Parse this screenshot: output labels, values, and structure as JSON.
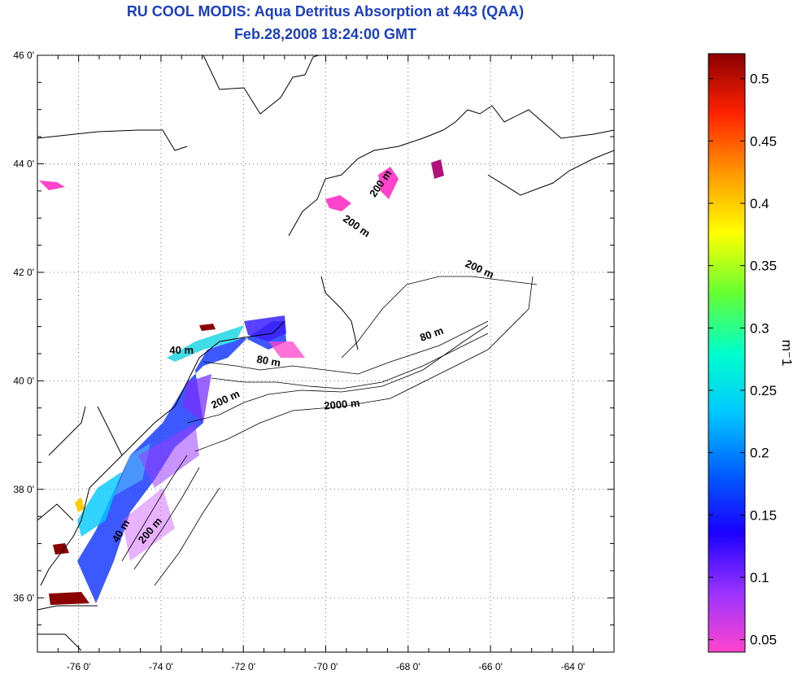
{
  "title": {
    "line1": "RU COOL MODIS: Aqua Detritus Absorption at 443 (QAA)",
    "line2": "Feb.28,2008 18:24:00 GMT"
  },
  "map": {
    "lon_range": [
      -77,
      -63
    ],
    "lat_range": [
      35,
      46
    ],
    "lon_ticks": [
      {
        "value": -76,
        "label": "-76 0'"
      },
      {
        "value": -74,
        "label": "-74 0'"
      },
      {
        "value": -72,
        "label": "-72 0'"
      },
      {
        "value": -70,
        "label": "-70 0'"
      },
      {
        "value": -68,
        "label": "-68 0'"
      },
      {
        "value": -66,
        "label": "-66 0'"
      },
      {
        "value": -64,
        "label": "-64 0'"
      }
    ],
    "lat_ticks": [
      {
        "value": 36,
        "label": "36 0'"
      },
      {
        "value": 38,
        "label": "38 0'"
      },
      {
        "value": 40,
        "label": "40 0'"
      },
      {
        "value": 42,
        "label": "42 0'"
      },
      {
        "value": 44,
        "label": "44 0'"
      },
      {
        "value": 46,
        "label": "46 0'"
      }
    ],
    "contour_labels": [
      {
        "text": "200 m",
        "lon": -68.6,
        "lat": 43.6,
        "rot": -55
      },
      {
        "text": "200 m",
        "lon": -69.3,
        "lat": 42.8,
        "rot": 35
      },
      {
        "text": "200 m",
        "lon": -66.3,
        "lat": 42.0,
        "rot": 25
      },
      {
        "text": "80 m",
        "lon": -67.4,
        "lat": 40.8,
        "rot": -20
      },
      {
        "text": "40 m",
        "lon": -73.5,
        "lat": 40.5,
        "rot": 0
      },
      {
        "text": "80 m",
        "lon": -71.4,
        "lat": 40.3,
        "rot": 10
      },
      {
        "text": "200 m",
        "lon": -72.4,
        "lat": 39.6,
        "rot": -25
      },
      {
        "text": "2000 m",
        "lon": -69.6,
        "lat": 39.5,
        "rot": -5
      },
      {
        "text": "40 m",
        "lon": -74.9,
        "lat": 37.2,
        "rot": -60
      },
      {
        "text": "200 m",
        "lon": -74.2,
        "lat": 37.2,
        "rot": -50
      }
    ]
  },
  "colorbar": {
    "min": 0.04,
    "max": 0.52,
    "ticks": [
      {
        "value": 0.05,
        "label": "0.05"
      },
      {
        "value": 0.1,
        "label": "0.1"
      },
      {
        "value": 0.15,
        "label": "0.15"
      },
      {
        "value": 0.2,
        "label": "0.2"
      },
      {
        "value": 0.25,
        "label": "0.25"
      },
      {
        "value": 0.3,
        "label": "0.3"
      },
      {
        "value": 0.35,
        "label": "0.35"
      },
      {
        "value": 0.4,
        "label": "0.4"
      },
      {
        "value": 0.45,
        "label": "0.45"
      },
      {
        "value": 0.5,
        "label": "0.5"
      }
    ],
    "unit": "m⁻1",
    "stops": [
      "#ff44cc",
      "#9933ff",
      "#1a00ff",
      "#0060ff",
      "#00c8ff",
      "#00ffcc",
      "#66ff33",
      "#ffff00",
      "#ff9900",
      "#ff2200",
      "#8b0000"
    ]
  }
}
